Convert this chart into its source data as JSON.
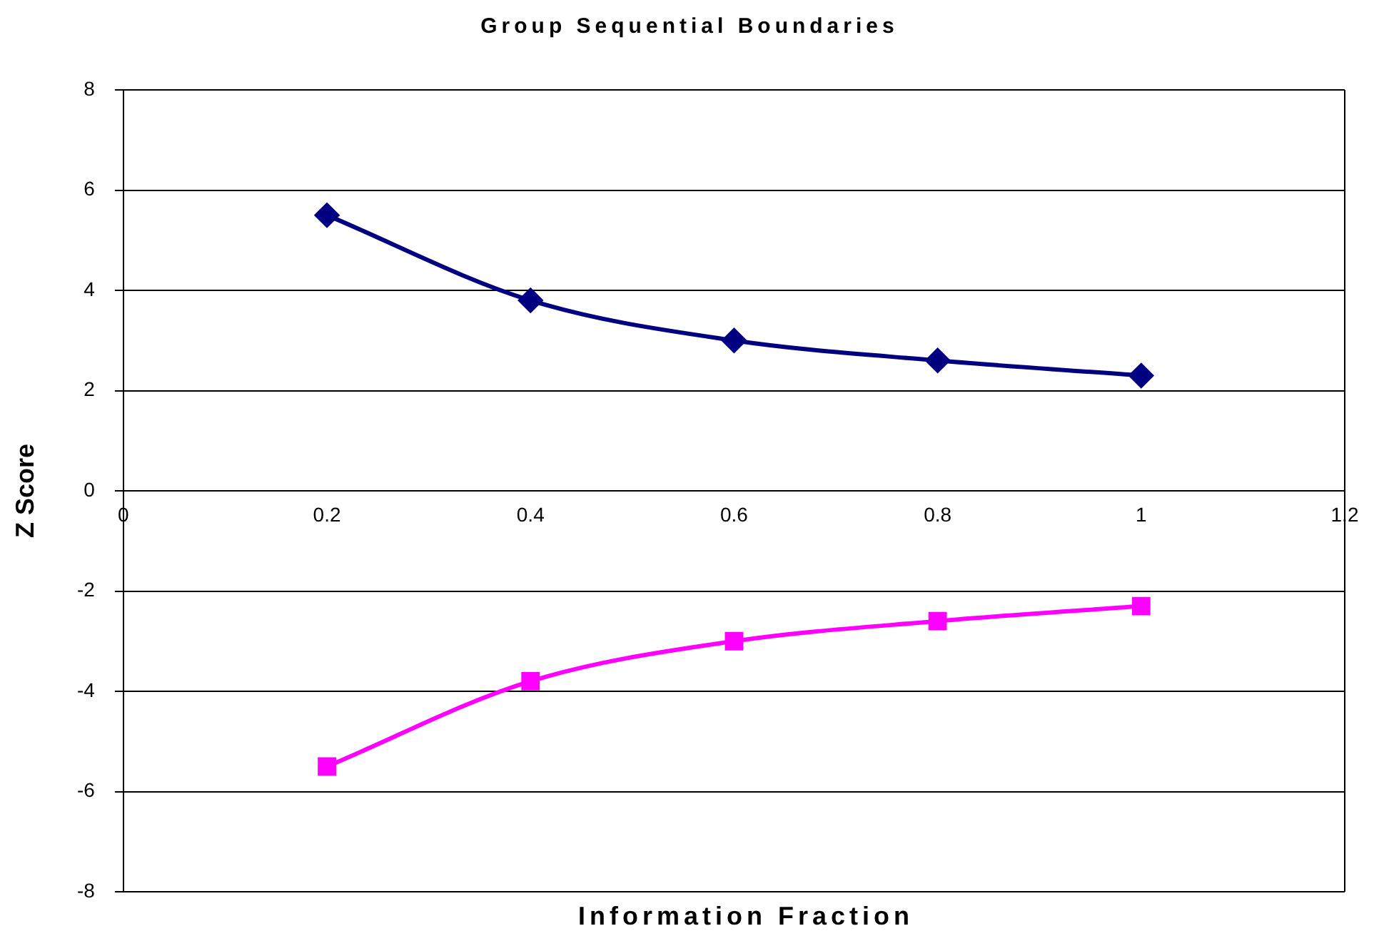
{
  "chart_data": {
    "type": "line",
    "title": "Group Sequential Boundaries",
    "xlabel": "Information Fraction",
    "ylabel": "Z Score",
    "x": [
      0.2,
      0.4,
      0.6,
      0.8,
      1
    ],
    "series": [
      {
        "color": "#000080",
        "marker": "diamond",
        "values": [
          5.5,
          3.8,
          3.0,
          2.6,
          2.3
        ]
      },
      {
        "color": "#ff00ff",
        "marker": "square",
        "values": [
          -5.5,
          -3.8,
          -3.0,
          -2.6,
          -2.3
        ]
      }
    ],
    "xlim": [
      0,
      1.2
    ],
    "xticks": [
      0,
      0.2,
      0.4,
      0.6,
      0.8,
      1,
      1.2
    ],
    "ylim": [
      -8,
      8
    ],
    "yticks": [
      -8,
      -6,
      -4,
      -2,
      0,
      2,
      4,
      6,
      8
    ],
    "grid": "y",
    "legend": false
  }
}
